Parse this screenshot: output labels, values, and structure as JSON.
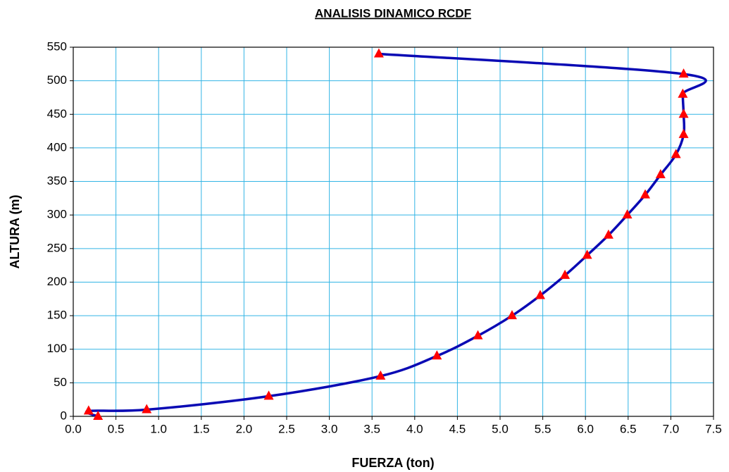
{
  "chart_data": {
    "type": "line",
    "title": "ANALISIS DINAMICO RCDF",
    "xlabel": "FUERZA (ton)",
    "ylabel": "ALTURA (m)",
    "x": [
      0.29,
      0.18,
      0.86,
      2.29,
      3.6,
      4.26,
      4.74,
      5.14,
      5.47,
      5.76,
      6.02,
      6.27,
      6.49,
      6.7,
      6.88,
      7.06,
      7.15,
      7.15,
      7.14,
      7.15,
      3.58
    ],
    "series": [
      {
        "color": "#0a0ab4",
        "marker_color": "#ff0000",
        "marker": "triangle",
        "values": [
          0,
          8,
          10,
          30,
          60,
          90,
          120,
          150,
          180,
          210,
          240,
          270,
          300,
          330,
          360,
          390,
          420,
          450,
          480,
          510,
          540
        ]
      }
    ],
    "xlim": [
      0,
      7.5
    ],
    "xticks": [
      {
        "value": 0,
        "label": "0.0"
      },
      0.5,
      {
        "value": 1,
        "label": "1.0"
      },
      1.5,
      {
        "value": 2,
        "label": "2.0"
      },
      2.5,
      {
        "value": 3,
        "label": "3.0"
      },
      3.5,
      {
        "value": 4,
        "label": "4.0"
      },
      4.5,
      {
        "value": 5,
        "label": "5.0"
      },
      5.5,
      {
        "value": 6,
        "label": "6.0"
      },
      6.5,
      {
        "value": 7,
        "label": "7.0"
      },
      7.5
    ],
    "ylim": [
      0,
      550
    ],
    "yticks": [
      0,
      50,
      100,
      150,
      200,
      250,
      300,
      350,
      400,
      450,
      500,
      550
    ],
    "grid": true,
    "grid_color": "#33b5e5"
  }
}
